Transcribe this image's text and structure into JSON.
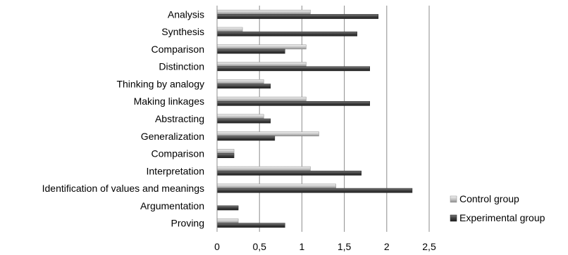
{
  "chart_data": {
    "type": "bar",
    "orientation": "horizontal",
    "categories": [
      "Analysis",
      "Synthesis",
      "Comparison",
      "Distinction",
      "Thinking by analogy",
      "Making linkages",
      "Abstracting",
      "Generalization",
      "Comparison",
      "Interpretation",
      "Identification of values and meanings",
      "Argumentation",
      "Proving"
    ],
    "series": [
      {
        "name": "Control group",
        "color": "#c4c4c4",
        "values": [
          1.1,
          0.3,
          1.05,
          1.05,
          0.55,
          1.05,
          0.55,
          1.2,
          0.2,
          1.1,
          1.4,
          0,
          0.25
        ]
      },
      {
        "name": "Experimental group",
        "color": "#404040",
        "values": [
          1.9,
          1.65,
          0.8,
          1.8,
          0.63,
          1.8,
          0.63,
          0.68,
          0.2,
          1.7,
          2.3,
          0.25,
          0.8
        ]
      }
    ],
    "xlim": [
      0,
      2.5
    ],
    "xticks": [
      "0",
      "0,5",
      "1",
      "1,5",
      "2",
      "2,5"
    ],
    "grid": "vertical",
    "legend_position": "right"
  }
}
